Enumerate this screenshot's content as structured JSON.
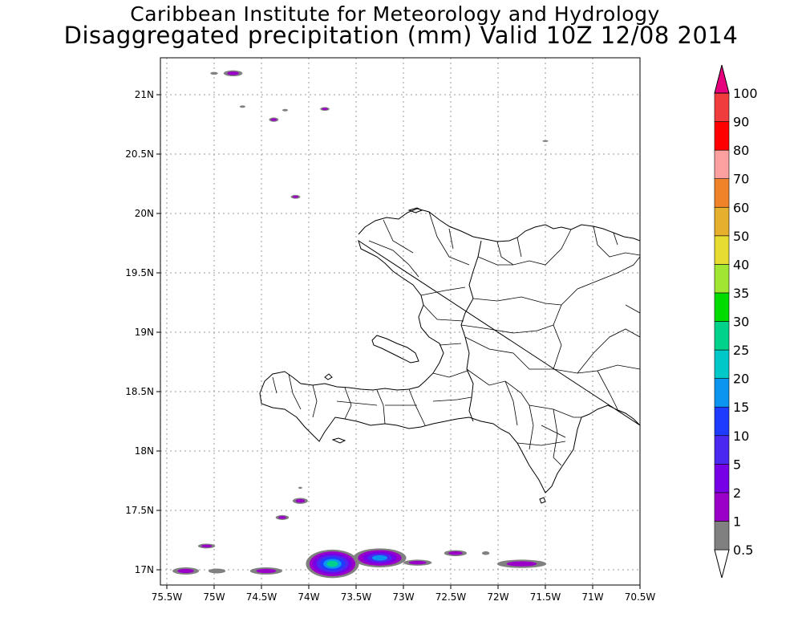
{
  "title": {
    "line1": "Caribbean Institute for Meteorology and Hydrology",
    "line2": "Disaggregated precipitation (mm) Valid 10Z 12/08 2014"
  },
  "map": {
    "lon_range": [
      -75.5,
      -70.5
    ],
    "lat_range": [
      16.85,
      21.25
    ],
    "gridlines": "dotted",
    "x_ticks": [
      {
        "value": -75.5,
        "label": "75.5W"
      },
      {
        "value": -75,
        "label": "75W"
      },
      {
        "value": -74.5,
        "label": "74.5W"
      },
      {
        "value": -74,
        "label": "74W"
      },
      {
        "value": -73.5,
        "label": "73.5W"
      },
      {
        "value": -73,
        "label": "73W"
      },
      {
        "value": -72.5,
        "label": "72.5W"
      },
      {
        "value": -72,
        "label": "72W"
      },
      {
        "value": -71.5,
        "label": "71.5W"
      },
      {
        "value": -71,
        "label": "71W"
      },
      {
        "value": -70.5,
        "label": "70.5W"
      }
    ],
    "y_ticks": [
      {
        "value": 17,
        "label": "17N"
      },
      {
        "value": 17.5,
        "label": "17.5N"
      },
      {
        "value": 18,
        "label": "18N"
      },
      {
        "value": 18.5,
        "label": "18.5N"
      },
      {
        "value": 19,
        "label": "19N"
      },
      {
        "value": 19.5,
        "label": "19.5N"
      },
      {
        "value": 20,
        "label": "20N"
      },
      {
        "value": 20.5,
        "label": "20.5N"
      },
      {
        "value": 21,
        "label": "21N"
      }
    ]
  },
  "colorbar": {
    "bins": [
      {
        "label": "0.5",
        "color": "#808080"
      },
      {
        "label": "1",
        "color": "#9a00c8"
      },
      {
        "label": "2",
        "color": "#7800e6"
      },
      {
        "label": "5",
        "color": "#4b28f0"
      },
      {
        "label": "10",
        "color": "#1e3cff"
      },
      {
        "label": "15",
        "color": "#0a96f0"
      },
      {
        "label": "20",
        "color": "#00c8c8"
      },
      {
        "label": "25",
        "color": "#00d28c"
      },
      {
        "label": "30",
        "color": "#00dc00"
      },
      {
        "label": "35",
        "color": "#a0e632"
      },
      {
        "label": "40",
        "color": "#e6dc32"
      },
      {
        "label": "50",
        "color": "#e6af2d"
      },
      {
        "label": "60",
        "color": "#f08228"
      },
      {
        "label": "70",
        "color": "#fca0a0"
      },
      {
        "label": "80",
        "color": "#ff0000"
      },
      {
        "label": "90",
        "color": "#f03c3c"
      },
      {
        "label": "100",
        "color": "#e6007d"
      }
    ],
    "below_min_color": "#ffffff"
  },
  "precip_features": [
    {
      "lon": -75.3,
      "lat": 16.99,
      "rlon": 0.14,
      "rlat": 0.03,
      "levels": [
        "#808080",
        "#9a00c8"
      ]
    },
    {
      "lon": -75.08,
      "lat": 17.2,
      "rlon": 0.09,
      "rlat": 0.02,
      "levels": [
        "#808080",
        "#9a00c8"
      ]
    },
    {
      "lon": -74.97,
      "lat": 16.99,
      "rlon": 0.09,
      "rlat": 0.02,
      "levels": [
        "#808080"
      ]
    },
    {
      "lon": -74.45,
      "lat": 16.99,
      "rlon": 0.17,
      "rlat": 0.03,
      "levels": [
        "#808080",
        "#9a00c8"
      ]
    },
    {
      "lon": -74.28,
      "lat": 17.44,
      "rlon": 0.07,
      "rlat": 0.02,
      "levels": [
        "#808080",
        "#9a00c8"
      ]
    },
    {
      "lon": -74.09,
      "lat": 17.58,
      "rlon": 0.08,
      "rlat": 0.025,
      "levels": [
        "#808080",
        "#9a00c8"
      ]
    },
    {
      "lon": -73.75,
      "lat": 17.05,
      "rlon": 0.28,
      "rlat": 0.12,
      "levels": [
        "#808080",
        "#9a00c8",
        "#7800e6",
        "#4b28f0",
        "#1e3cff",
        "#0a96f0",
        "#00d28c"
      ]
    },
    {
      "lon": -73.25,
      "lat": 17.1,
      "rlon": 0.28,
      "rlat": 0.08,
      "levels": [
        "#808080",
        "#9a00c8",
        "#7800e6",
        "#4b28f0",
        "#0a96f0"
      ]
    },
    {
      "lon": -72.85,
      "lat": 17.06,
      "rlon": 0.15,
      "rlat": 0.025,
      "levels": [
        "#808080",
        "#9a00c8"
      ]
    },
    {
      "lon": -72.45,
      "lat": 17.14,
      "rlon": 0.12,
      "rlat": 0.025,
      "levels": [
        "#808080",
        "#9a00c8"
      ]
    },
    {
      "lon": -72.13,
      "lat": 17.14,
      "rlon": 0.04,
      "rlat": 0.015,
      "levels": [
        "#808080"
      ]
    },
    {
      "lon": -71.75,
      "lat": 17.05,
      "rlon": 0.26,
      "rlat": 0.035,
      "levels": [
        "#808080",
        "#9a00c8"
      ]
    },
    {
      "lon": -74.8,
      "lat": 21.18,
      "rlon": 0.1,
      "rlat": 0.025,
      "levels": [
        "#808080",
        "#9a00c8"
      ]
    },
    {
      "lon": -75.0,
      "lat": 21.18,
      "rlon": 0.04,
      "rlat": 0.012,
      "levels": [
        "#808080"
      ]
    },
    {
      "lon": -74.37,
      "lat": 20.79,
      "rlon": 0.05,
      "rlat": 0.018,
      "levels": [
        "#808080",
        "#9a00c8"
      ]
    },
    {
      "lon": -73.83,
      "lat": 20.88,
      "rlon": 0.05,
      "rlat": 0.015,
      "levels": [
        "#808080",
        "#9a00c8"
      ]
    },
    {
      "lon": -74.14,
      "lat": 20.14,
      "rlon": 0.05,
      "rlat": 0.016,
      "levels": [
        "#808080",
        "#9a00c8"
      ]
    },
    {
      "lon": -74.25,
      "lat": 20.87,
      "rlon": 0.03,
      "rlat": 0.01,
      "levels": [
        "#808080"
      ]
    },
    {
      "lon": -74.7,
      "lat": 20.9,
      "rlon": 0.03,
      "rlat": 0.01,
      "levels": [
        "#808080"
      ]
    },
    {
      "lon": -74.09,
      "lat": 17.69,
      "rlon": 0.02,
      "rlat": 0.008,
      "levels": [
        "#808080"
      ]
    },
    {
      "lon": -71.5,
      "lat": 20.61,
      "rlon": 0.03,
      "rlat": 0.008,
      "levels": [
        "#808080"
      ]
    }
  ]
}
